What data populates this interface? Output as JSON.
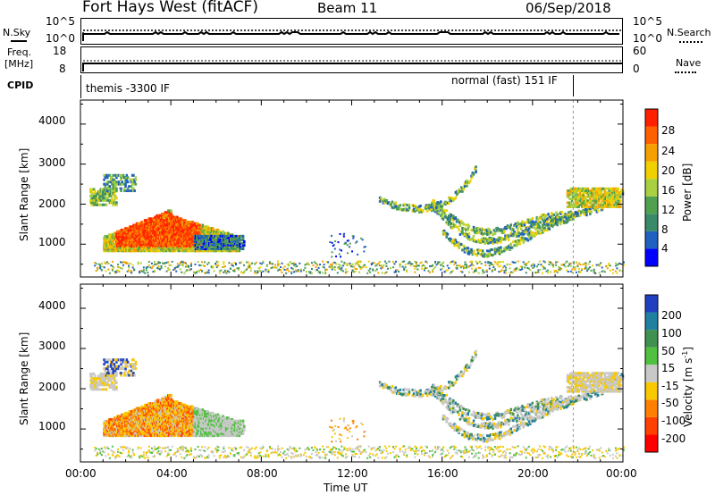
{
  "header": {
    "station": "Fort Hays West (fitACF)",
    "beam": "Beam 11",
    "date": "06/Sep/2018"
  },
  "noise_panel": {
    "left_label": "N.Sky",
    "right_label": "N.Search",
    "left_ticks": [
      "10^5",
      "10^0"
    ],
    "right_ticks": [
      "10^5",
      "10^0"
    ]
  },
  "freq_panel": {
    "left_label_line1": "Freq.",
    "left_label_line2": "[MHz]",
    "right_label": "Nave",
    "left_ticks": [
      "18",
      "8"
    ],
    "right_ticks": [
      "60",
      "0"
    ]
  },
  "cpid_panel": {
    "label": "CPID",
    "mode_1": "themis -3300 IF",
    "mode_2": "normal (fast) 151 IF"
  },
  "chart_data": [
    {
      "type": "heatmap",
      "panel": "power",
      "ylabel": "Slant Range [km]",
      "xlabel": "Time UT",
      "x_ticks": [
        "00:00",
        "04:00",
        "08:00",
        "12:00",
        "16:00",
        "20:00",
        "00:00"
      ],
      "y_ticks": [
        "4000",
        "3000",
        "2000",
        "1000"
      ],
      "ylim": [
        180,
        4600
      ],
      "xlim_hours": [
        0,
        24
      ],
      "colorbar": {
        "label": "Power [dB]",
        "ticks": [
          "28",
          "24",
          "20",
          "16",
          "12",
          "8",
          "4"
        ],
        "colors": [
          "#0000ff",
          "#2060c0",
          "#3a8a6a",
          "#50a050",
          "#a8d040",
          "#f0d000",
          "#f5a000",
          "#ff6000",
          "#ff2000"
        ]
      },
      "regions": [
        {
          "t0": 0.4,
          "t1": 1.5,
          "r0": 1950,
          "r1": 2700,
          "level": "mid"
        },
        {
          "t0": 0.9,
          "t1": 7.0,
          "r0": 800,
          "r1": 1900,
          "level": "high"
        },
        {
          "t0": 13.0,
          "t1": 24.0,
          "r0": 1000,
          "r1": 2700,
          "level": "low"
        }
      ]
    },
    {
      "type": "heatmap",
      "panel": "velocity",
      "ylabel": "Slant Range [km]",
      "xlabel": "Time UT",
      "x_ticks": [
        "00:00",
        "04:00",
        "08:00",
        "12:00",
        "16:00",
        "20:00",
        "00:00"
      ],
      "y_ticks": [
        "4000",
        "3000",
        "2000",
        "1000"
      ],
      "ylim": [
        180,
        4600
      ],
      "xlim_hours": [
        0,
        24
      ],
      "colorbar": {
        "label": "Velocity [m s^-1]",
        "ticks": [
          "200",
          "100",
          "50",
          "15",
          "-15",
          "-50",
          "-100",
          "-200"
        ],
        "colors": [
          "#ff0000",
          "#ff4000",
          "#ff8000",
          "#f8c800",
          "#c8c8c8",
          "#50c040",
          "#409050",
          "#2080a0",
          "#2040c0"
        ]
      }
    }
  ],
  "x_axis": {
    "label": "Time UT",
    "ticks": [
      "00:00",
      "04:00",
      "08:00",
      "12:00",
      "16:00",
      "20:00",
      "00:00"
    ]
  }
}
